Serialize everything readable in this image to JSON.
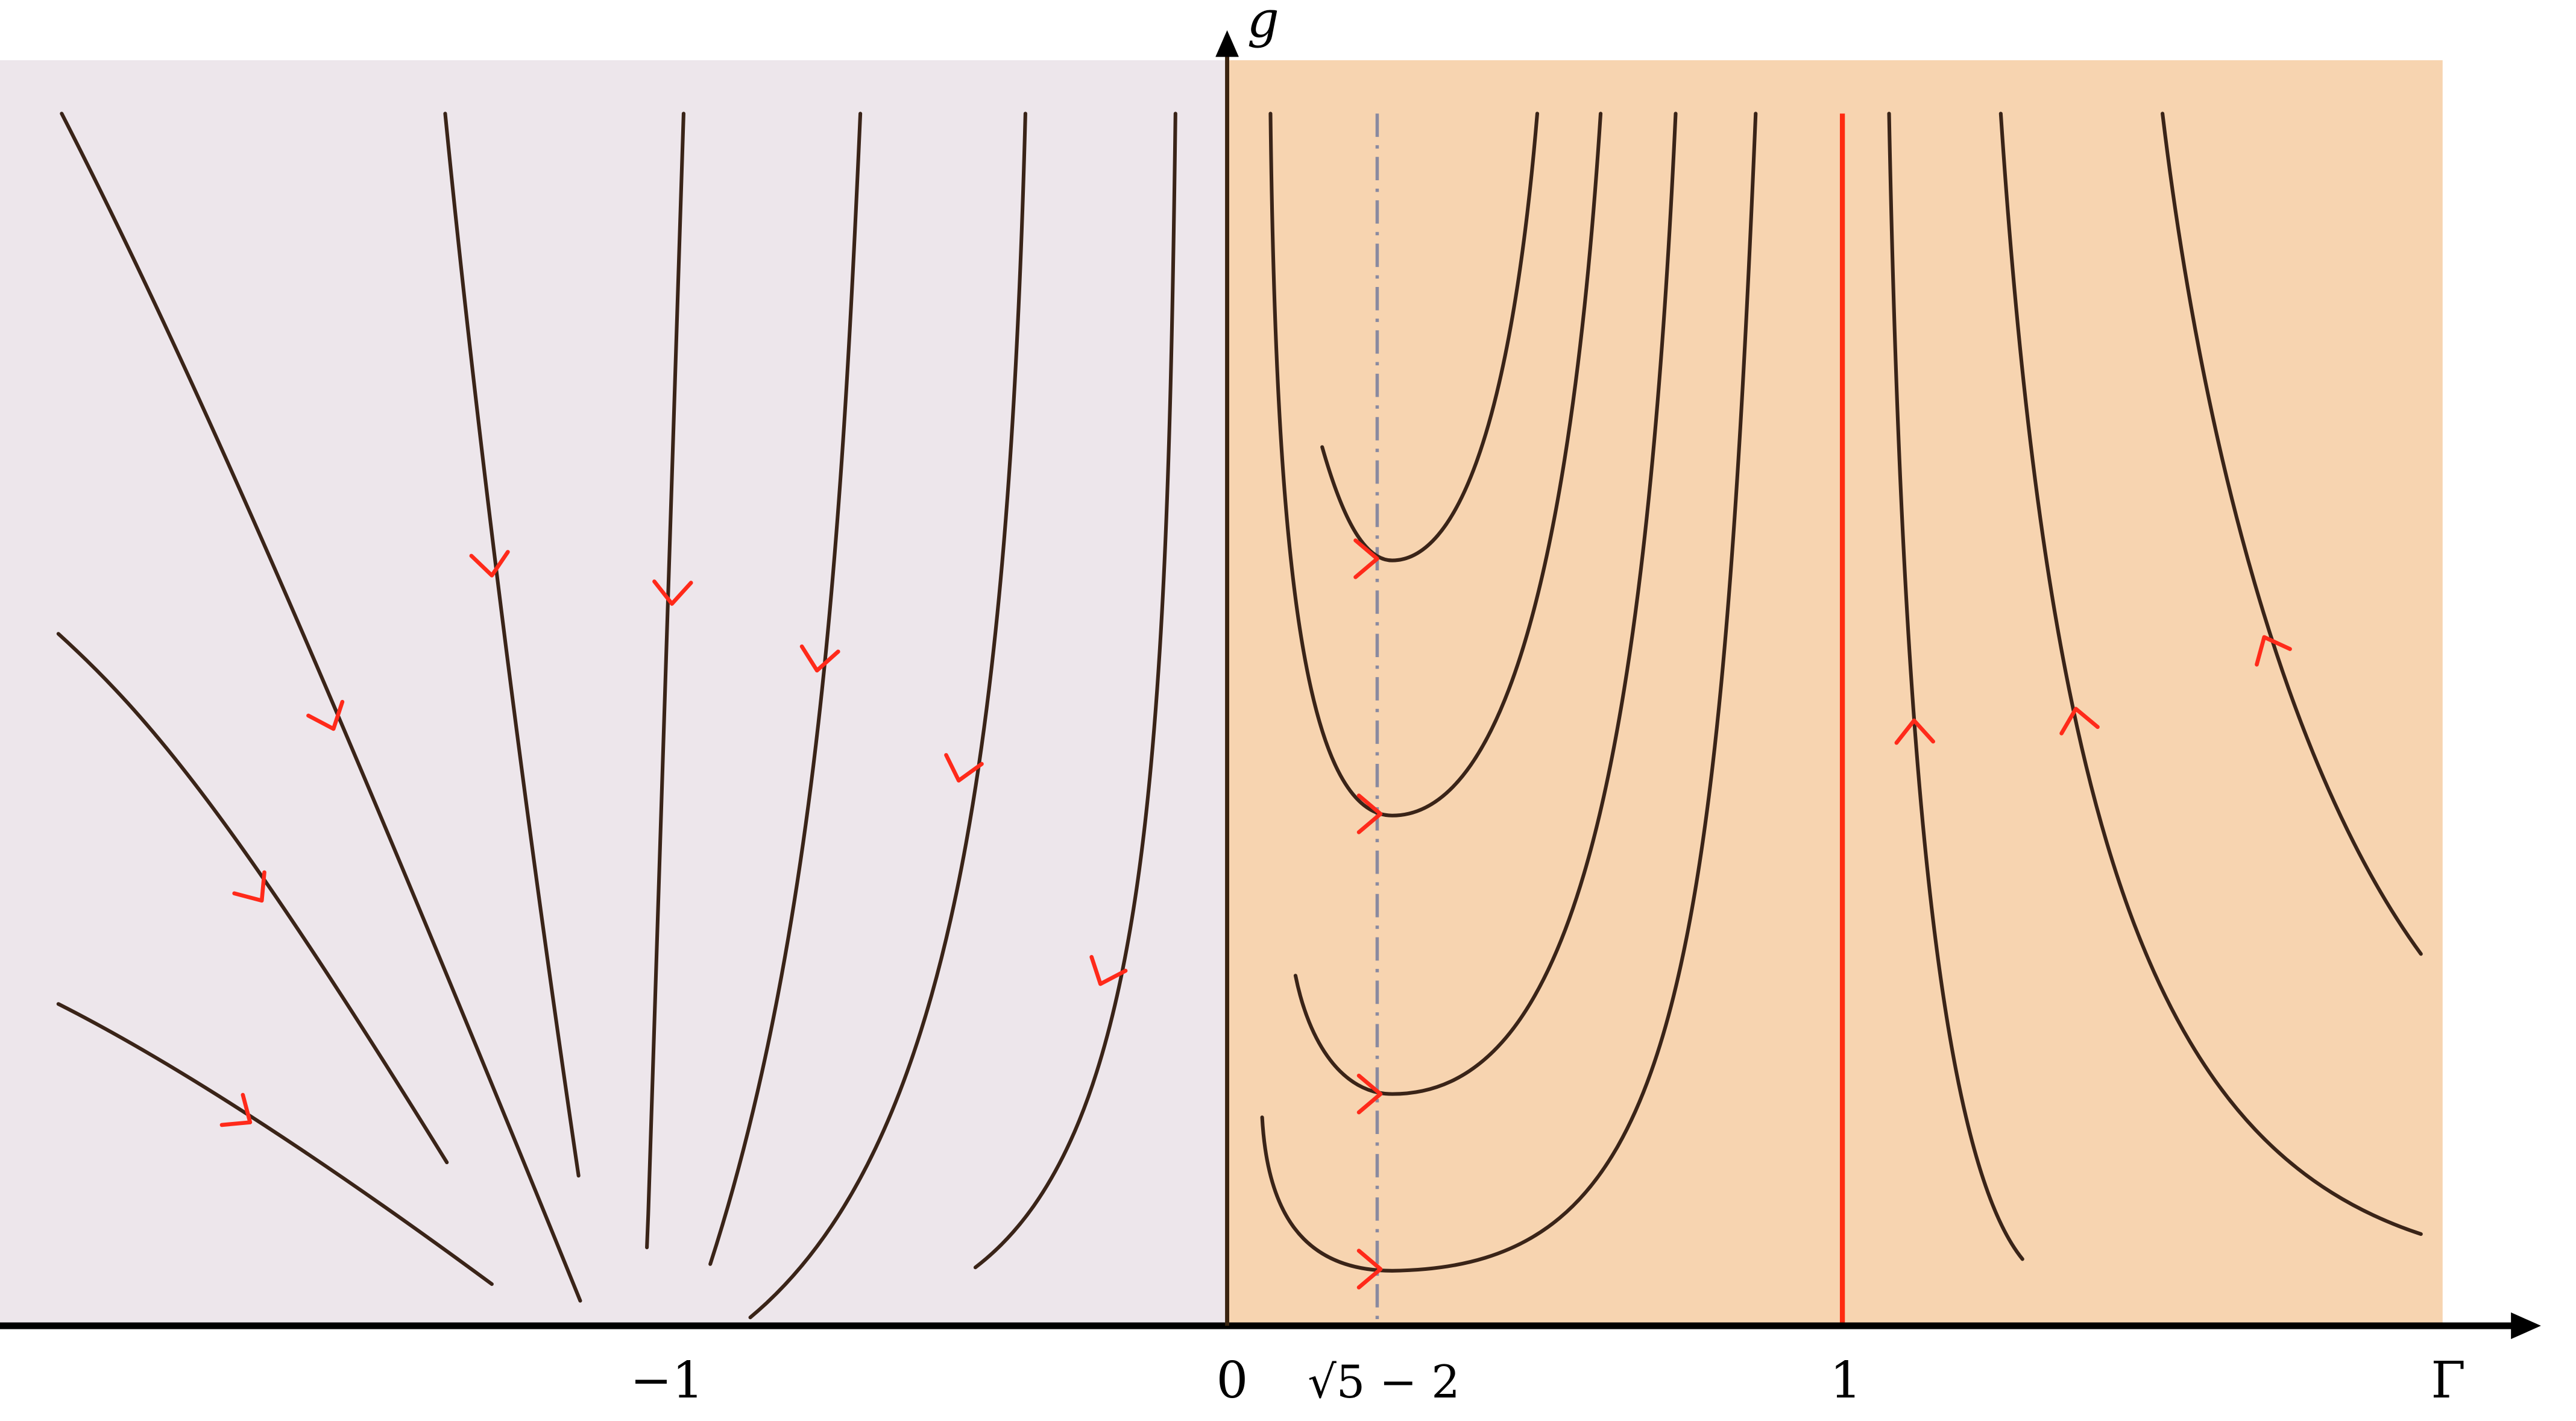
{
  "axes": {
    "x_label": "Γ",
    "y_label": "g",
    "x_ticks": [
      "−1",
      "0",
      "√5 − 2",
      "1"
    ]
  },
  "colors": {
    "left_region": "#ede6eb",
    "right_region": "#f7d4b0",
    "flow_line": "#3a2418",
    "flow_arrow": "#ff2a1a",
    "fixed_line": "#ff2a10",
    "dash_line": "#8a8aa0",
    "axis": "#000000"
  },
  "annotations": {
    "fixed_line": "Γ = 1",
    "dash_line": "Γ = √5 − 2"
  }
}
